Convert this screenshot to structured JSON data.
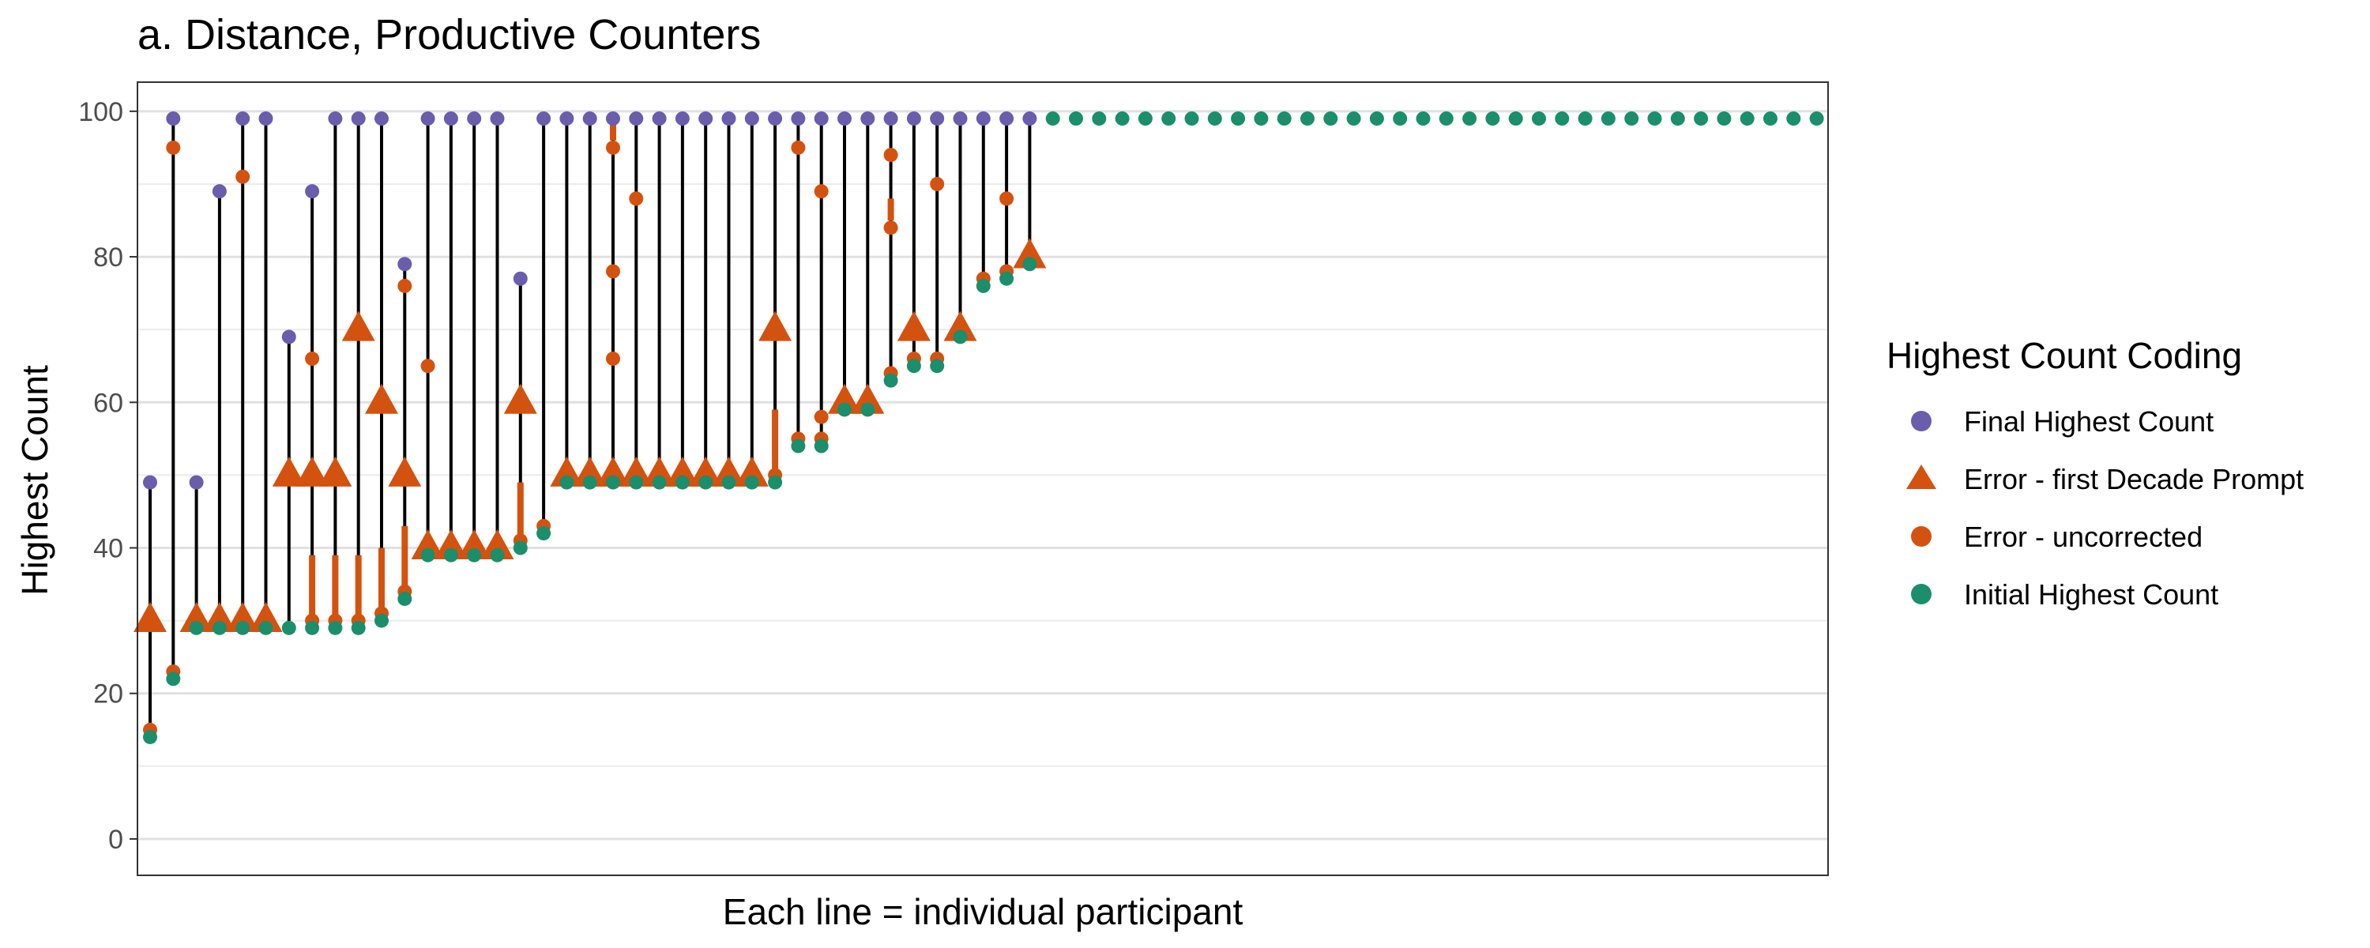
{
  "chart_data": {
    "type": "scatter",
    "title": "a. Distance, Productive Counters",
    "xlabel": "Each line = individual participant",
    "ylabel": "Highest Count",
    "ylim": [
      -5,
      104
    ],
    "y_ticks": [
      0,
      20,
      40,
      60,
      80,
      100
    ],
    "grid": true,
    "legend_position": "right",
    "legend_title": "Highest Count Coding",
    "colors": {
      "final": "#6A5DAB",
      "decade": "#D4520F",
      "uncorrected": "#D4520F",
      "initial": "#1B8E6B",
      "line": "#000000",
      "errorbar": "#D4520F"
    },
    "series": [
      {
        "key": "final",
        "name": "Final Highest Count",
        "shape": "circle"
      },
      {
        "key": "decade",
        "name": "Error - first Decade Prompt",
        "shape": "triangle"
      },
      {
        "key": "uncorrected",
        "name": "Error - uncorrected",
        "shape": "circle"
      },
      {
        "key": "initial",
        "name": "Initial Highest Count",
        "shape": "circle"
      }
    ],
    "participants": [
      {
        "initial": 14,
        "final": 49,
        "decade": [
          30
        ],
        "uncorrected": [
          15
        ]
      },
      {
        "initial": 22,
        "final": 99,
        "decade": [],
        "uncorrected": [
          23,
          95
        ]
      },
      {
        "initial": 29,
        "final": 49,
        "decade": [
          30
        ],
        "uncorrected": []
      },
      {
        "initial": 29,
        "final": 89,
        "decade": [
          30
        ],
        "uncorrected": []
      },
      {
        "initial": 29,
        "final": 99,
        "decade": [
          30
        ],
        "uncorrected": [
          91
        ]
      },
      {
        "initial": 29,
        "final": 99,
        "decade": [
          30
        ],
        "uncorrected": []
      },
      {
        "initial": 29,
        "final": 69,
        "decade": [
          50
        ],
        "uncorrected": []
      },
      {
        "initial": 29,
        "final": 89,
        "decade": [
          50
        ],
        "uncorrected": [
          30,
          66
        ],
        "bar": [
          30,
          39
        ]
      },
      {
        "initial": 29,
        "final": 99,
        "decade": [
          50
        ],
        "uncorrected": [
          30
        ],
        "bar": [
          30,
          39
        ]
      },
      {
        "initial": 29,
        "final": 99,
        "decade": [
          70
        ],
        "uncorrected": [
          30
        ],
        "bar": [
          30,
          39
        ]
      },
      {
        "initial": 30,
        "final": 99,
        "decade": [
          60
        ],
        "uncorrected": [
          31
        ],
        "bar": [
          31,
          40
        ]
      },
      {
        "initial": 33,
        "final": 79,
        "decade": [
          50
        ],
        "uncorrected": [
          34,
          76
        ],
        "bar": [
          34,
          43
        ]
      },
      {
        "initial": 39,
        "final": 99,
        "decade": [
          40
        ],
        "uncorrected": [
          65
        ]
      },
      {
        "initial": 39,
        "final": 99,
        "decade": [
          40
        ],
        "uncorrected": []
      },
      {
        "initial": 39,
        "final": 99,
        "decade": [
          40
        ],
        "uncorrected": []
      },
      {
        "initial": 39,
        "final": 99,
        "decade": [
          40
        ],
        "uncorrected": []
      },
      {
        "initial": 40,
        "final": 77,
        "decade": [
          60
        ],
        "uncorrected": [
          41
        ],
        "bar": [
          41,
          49
        ]
      },
      {
        "initial": 42,
        "final": 99,
        "decade": [],
        "uncorrected": [
          43
        ]
      },
      {
        "initial": 49,
        "final": 99,
        "decade": [
          50
        ],
        "uncorrected": []
      },
      {
        "initial": 49,
        "final": 99,
        "decade": [
          50
        ],
        "uncorrected": []
      },
      {
        "initial": 49,
        "final": 99,
        "decade": [
          50
        ],
        "uncorrected": [
          66,
          78,
          95
        ],
        "bar": [
          96,
          99
        ]
      },
      {
        "initial": 49,
        "final": 99,
        "decade": [
          50
        ],
        "uncorrected": [
          88
        ]
      },
      {
        "initial": 49,
        "final": 99,
        "decade": [
          50
        ],
        "uncorrected": []
      },
      {
        "initial": 49,
        "final": 99,
        "decade": [
          50
        ],
        "uncorrected": []
      },
      {
        "initial": 49,
        "final": 99,
        "decade": [
          50
        ],
        "uncorrected": []
      },
      {
        "initial": 49,
        "final": 99,
        "decade": [
          50
        ],
        "uncorrected": []
      },
      {
        "initial": 49,
        "final": 99,
        "decade": [
          50
        ],
        "uncorrected": []
      },
      {
        "initial": 49,
        "final": 99,
        "decade": [
          70
        ],
        "uncorrected": [
          50
        ],
        "bar": [
          50,
          59
        ]
      },
      {
        "initial": 54,
        "final": 99,
        "decade": [],
        "uncorrected": [
          55,
          95
        ]
      },
      {
        "initial": 54,
        "final": 99,
        "decade": [],
        "uncorrected": [
          55,
          58,
          89
        ]
      },
      {
        "initial": 59,
        "final": 99,
        "decade": [
          60
        ],
        "uncorrected": []
      },
      {
        "initial": 59,
        "final": 99,
        "decade": [
          60
        ],
        "uncorrected": []
      },
      {
        "initial": 63,
        "final": 99,
        "decade": [],
        "uncorrected": [
          64,
          84,
          94
        ],
        "bar": [
          85,
          88
        ]
      },
      {
        "initial": 65,
        "final": 99,
        "decade": [
          70
        ],
        "uncorrected": [
          66
        ]
      },
      {
        "initial": 65,
        "final": 99,
        "decade": [],
        "uncorrected": [
          66,
          90
        ]
      },
      {
        "initial": 69,
        "final": 99,
        "decade": [
          70
        ],
        "uncorrected": []
      },
      {
        "initial": 76,
        "final": 99,
        "decade": [],
        "uncorrected": [
          77
        ]
      },
      {
        "initial": 77,
        "final": 99,
        "decade": [],
        "uncorrected": [
          78,
          88
        ]
      },
      {
        "initial": 79,
        "final": 99,
        "decade": [
          80
        ],
        "uncorrected": []
      },
      {
        "initial": 99
      },
      {
        "initial": 99
      },
      {
        "initial": 99
      },
      {
        "initial": 99
      },
      {
        "initial": 99
      },
      {
        "initial": 99
      },
      {
        "initial": 99
      },
      {
        "initial": 99
      },
      {
        "initial": 99
      },
      {
        "initial": 99
      },
      {
        "initial": 99
      },
      {
        "initial": 99
      },
      {
        "initial": 99
      },
      {
        "initial": 99
      },
      {
        "initial": 99
      },
      {
        "initial": 99
      },
      {
        "initial": 99
      },
      {
        "initial": 99
      },
      {
        "initial": 99
      },
      {
        "initial": 99
      },
      {
        "initial": 99
      },
      {
        "initial": 99
      },
      {
        "initial": 99
      },
      {
        "initial": 99
      },
      {
        "initial": 99
      },
      {
        "initial": 99
      },
      {
        "initial": 99
      },
      {
        "initial": 99
      },
      {
        "initial": 99
      },
      {
        "initial": 99
      },
      {
        "initial": 99
      },
      {
        "initial": 99
      },
      {
        "initial": 99
      },
      {
        "initial": 99
      }
    ]
  }
}
